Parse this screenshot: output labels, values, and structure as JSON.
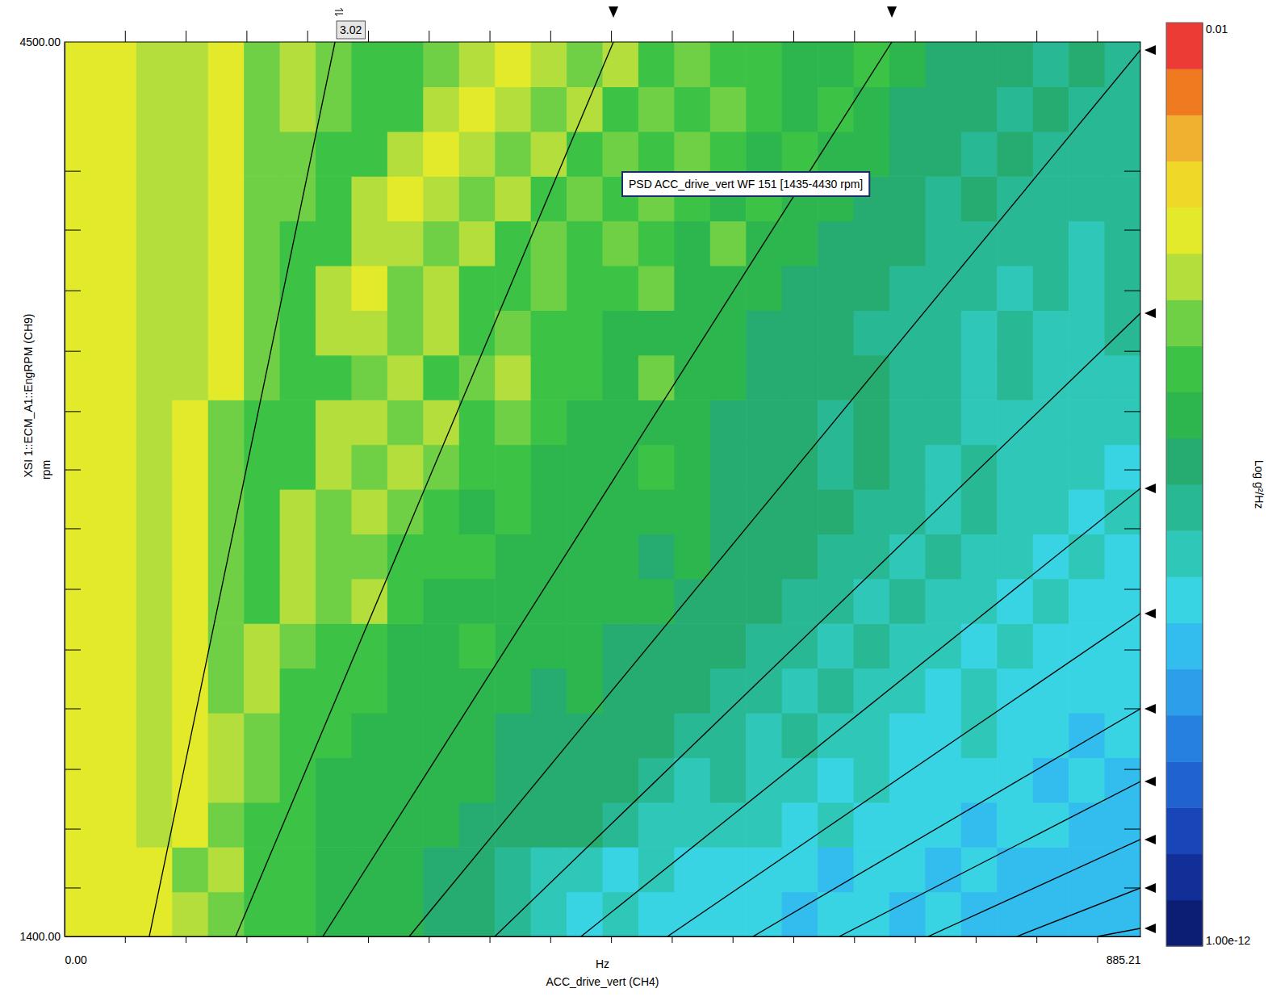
{
  "chart_data": {
    "type": "heatmap",
    "x_label": "ACC_drive_vert (CH4)",
    "x_unit": "Hz",
    "y_label": "XSI 1::ECM_A1::EngRPM (CH9)",
    "y_unit": "rpm",
    "annotation": "PSD ACC_drive_vert WF 151 [1435-4430 rpm]",
    "cursor_order": 3.02,
    "xlim": [
      0,
      885.21
    ],
    "ylim": [
      1400,
      4500
    ],
    "xticks": [
      {
        "value": 0,
        "label": "0.00"
      },
      {
        "value": 885.21,
        "label": "885.21"
      }
    ],
    "yticks": [
      {
        "value": 1400,
        "label": "1400.00"
      },
      {
        "value": 4500,
        "label": "4500.00"
      }
    ],
    "minor_xticks": [
      50,
      100,
      150,
      200,
      250,
      300,
      350,
      400,
      450,
      500,
      550,
      600,
      650,
      700,
      750,
      800,
      850
    ],
    "minor_yticks": [
      1568,
      1772,
      1979,
      2189,
      2393,
      2603,
      2813,
      3017,
      3219,
      3428,
      3638,
      3848,
      4052
    ],
    "x_bins": [
      0,
      29.51,
      59.01,
      88.52,
      118.03,
      147.54,
      177.04,
      206.55,
      236.06,
      265.56,
      295.07,
      324.58,
      354.08,
      383.59,
      413.1,
      442.61,
      472.11,
      501.62,
      531.13,
      560.63,
      590.14,
      619.65,
      649.15,
      678.66,
      708.17,
      737.68,
      767.18,
      796.69,
      826.2,
      855.7,
      885.21
    ],
    "y_bins": [
      1400,
      1555,
      1710,
      1865,
      2020,
      2175,
      2330,
      2485,
      2640,
      2795,
      2950,
      3105,
      3260,
      3415,
      3570,
      3725,
      3880,
      4035,
      4190,
      4345,
      4500
    ],
    "z": [
      [
        5e-05,
        5e-05,
        5e-05,
        1.5e-05,
        4e-06,
        1.5e-06,
        1.5e-06,
        6e-07,
        6e-07,
        6e-07,
        2e-07,
        2e-07,
        6e-08,
        2e-08,
        6e-09,
        2e-08,
        6e-09,
        6e-09,
        6e-09,
        6e-09,
        2e-09,
        6e-09,
        6e-09,
        2e-09,
        6e-09,
        2e-09,
        2e-09,
        2e-09,
        2e-09,
        2e-09
      ],
      [
        5e-05,
        5e-05,
        5e-05,
        4e-06,
        1.5e-05,
        1.5e-06,
        1.5e-06,
        6e-07,
        6e-07,
        6e-07,
        2e-07,
        2e-07,
        6e-08,
        2e-08,
        2e-08,
        6e-09,
        2e-08,
        6e-09,
        6e-09,
        6e-09,
        6e-09,
        2e-09,
        6e-09,
        6e-09,
        2e-09,
        6e-09,
        2e-09,
        2e-09,
        2e-09,
        2e-09
      ],
      [
        5e-05,
        5e-05,
        1.5e-05,
        5e-05,
        4e-06,
        1.5e-06,
        1.5e-06,
        6e-07,
        6e-07,
        6e-07,
        6e-07,
        2e-07,
        2e-07,
        2e-07,
        2e-07,
        6e-08,
        2e-08,
        2e-08,
        2e-08,
        2e-08,
        6e-09,
        2e-08,
        6e-09,
        6e-09,
        6e-09,
        2e-09,
        6e-09,
        6e-09,
        2e-09,
        2e-09
      ],
      [
        5e-05,
        5e-05,
        1.5e-05,
        5e-05,
        1.5e-05,
        4e-06,
        1.5e-06,
        6e-07,
        6e-07,
        6e-07,
        6e-07,
        6e-07,
        2e-07,
        2e-07,
        2e-07,
        2e-07,
        6e-08,
        2e-08,
        6e-08,
        2e-08,
        2e-08,
        6e-09,
        2e-08,
        6e-09,
        6e-09,
        6e-09,
        6e-09,
        2e-09,
        6e-09,
        2e-09
      ],
      [
        5e-05,
        5e-05,
        1.5e-05,
        5e-05,
        1.5e-05,
        4e-06,
        1.5e-06,
        1.5e-06,
        6e-07,
        6e-07,
        6e-07,
        6e-07,
        2e-07,
        2e-07,
        2e-07,
        2e-07,
        2e-07,
        6e-08,
        6e-08,
        2e-08,
        6e-08,
        2e-08,
        2e-08,
        6e-09,
        6e-09,
        2e-08,
        6e-09,
        6e-09,
        2e-09,
        6e-09
      ],
      [
        5e-05,
        5e-05,
        1.5e-05,
        5e-05,
        4e-06,
        1.5e-05,
        1.5e-06,
        1.5e-06,
        1.5e-06,
        6e-07,
        6e-07,
        6e-07,
        6e-07,
        2e-07,
        6e-07,
        2e-07,
        2e-07,
        2e-07,
        6e-08,
        6e-08,
        2e-08,
        6e-08,
        2e-08,
        2e-08,
        6e-09,
        2e-08,
        6e-09,
        6e-09,
        6e-09,
        6e-09
      ],
      [
        5e-05,
        5e-05,
        1.5e-05,
        5e-05,
        4e-06,
        1.5e-05,
        4e-06,
        1.5e-06,
        1.5e-06,
        6e-07,
        6e-07,
        1.5e-06,
        6e-07,
        6e-07,
        6e-07,
        2e-07,
        2e-07,
        2e-07,
        2e-07,
        6e-08,
        6e-08,
        2e-08,
        6e-08,
        2e-08,
        2e-08,
        6e-09,
        2e-08,
        6e-09,
        6e-09,
        6e-09
      ],
      [
        5e-05,
        5e-05,
        1.5e-05,
        5e-05,
        4e-06,
        1.5e-06,
        1.5e-05,
        4e-06,
        1.5e-05,
        1.5e-06,
        6e-07,
        6e-07,
        6e-07,
        6e-07,
        6e-07,
        6e-07,
        6e-07,
        2e-07,
        2e-07,
        2e-07,
        6e-08,
        6e-08,
        2e-08,
        6e-08,
        2e-08,
        2e-08,
        6e-09,
        2e-08,
        6e-09,
        6e-09
      ],
      [
        5e-05,
        5e-05,
        1.5e-05,
        5e-05,
        4e-06,
        1.5e-06,
        1.5e-05,
        4e-06,
        4e-06,
        1.5e-06,
        1.5e-06,
        1.5e-06,
        6e-07,
        6e-07,
        6e-07,
        6e-07,
        2e-07,
        6e-07,
        2e-07,
        2e-07,
        2e-07,
        6e-08,
        6e-08,
        2e-08,
        6e-08,
        2e-08,
        2e-08,
        6e-09,
        2e-08,
        6e-09
      ],
      [
        5e-05,
        5e-05,
        1.5e-05,
        5e-05,
        4e-06,
        1.5e-06,
        1.5e-05,
        4e-06,
        1.5e-05,
        4e-06,
        1.5e-06,
        6e-07,
        1.5e-06,
        6e-07,
        6e-07,
        6e-07,
        6e-07,
        6e-07,
        2e-07,
        2e-07,
        2e-07,
        2e-07,
        6e-08,
        6e-08,
        2e-08,
        6e-08,
        2e-08,
        2e-08,
        6e-09,
        2e-08
      ],
      [
        5e-05,
        5e-05,
        1.5e-05,
        5e-05,
        4e-06,
        1.5e-06,
        1.5e-06,
        1.5e-05,
        4e-06,
        1.5e-05,
        4e-06,
        1.5e-06,
        1.5e-06,
        6e-07,
        6e-07,
        6e-07,
        1.5e-06,
        6e-07,
        2e-07,
        2e-07,
        2e-07,
        6e-08,
        2e-07,
        6e-08,
        2e-08,
        6e-08,
        2e-08,
        2e-08,
        2e-08,
        6e-09
      ],
      [
        5e-05,
        5e-05,
        1.5e-05,
        5e-05,
        4e-06,
        1.5e-06,
        1.5e-06,
        1.5e-05,
        1.5e-05,
        4e-06,
        1.5e-05,
        1.5e-06,
        4e-06,
        1.5e-06,
        6e-07,
        6e-07,
        6e-07,
        6e-07,
        2e-07,
        2e-07,
        2e-07,
        6e-08,
        2e-07,
        6e-08,
        6e-08,
        2e-08,
        2e-08,
        2e-08,
        2e-08,
        2e-08
      ],
      [
        5e-05,
        5e-05,
        1.5e-05,
        1.5e-05,
        5e-05,
        4e-06,
        1.5e-06,
        1.5e-06,
        4e-06,
        1.5e-05,
        1.5e-06,
        4e-06,
        1.5e-05,
        1.5e-06,
        1.5e-06,
        6e-07,
        4e-06,
        6e-07,
        6e-07,
        2e-07,
        2e-07,
        2e-07,
        2e-07,
        6e-08,
        6e-08,
        2e-08,
        6e-08,
        2e-08,
        2e-08,
        2e-08
      ],
      [
        5e-05,
        5e-05,
        1.5e-05,
        1.5e-05,
        5e-05,
        4e-06,
        1.5e-06,
        1.5e-05,
        1.5e-05,
        4e-06,
        1.5e-05,
        1.5e-06,
        4e-06,
        1.5e-06,
        1.5e-06,
        6e-07,
        6e-07,
        6e-07,
        6e-07,
        2e-07,
        2e-07,
        2e-07,
        6e-08,
        6e-08,
        6e-08,
        2e-08,
        6e-08,
        2e-08,
        2e-08,
        6e-08
      ],
      [
        5e-05,
        5e-05,
        1.5e-05,
        1.5e-05,
        5e-05,
        4e-06,
        1.5e-06,
        1.5e-05,
        5e-05,
        4e-06,
        1.5e-05,
        1.5e-06,
        1.5e-06,
        4e-06,
        1.5e-06,
        1.5e-06,
        4e-06,
        6e-07,
        6e-07,
        6e-07,
        2e-07,
        2e-07,
        2e-07,
        6e-08,
        6e-08,
        6e-08,
        2e-08,
        6e-08,
        2e-08,
        6e-08
      ],
      [
        5e-05,
        5e-05,
        1.5e-05,
        1.5e-05,
        5e-05,
        4e-06,
        1.5e-06,
        1.5e-06,
        1.5e-05,
        1.5e-05,
        4e-06,
        1.5e-05,
        1.5e-06,
        4e-06,
        1.5e-06,
        4e-06,
        1.5e-06,
        6e-07,
        4e-06,
        6e-07,
        6e-07,
        2e-07,
        2e-07,
        2e-07,
        6e-08,
        6e-08,
        6e-08,
        6e-08,
        2e-08,
        6e-08
      ],
      [
        5e-05,
        5e-05,
        1.5e-05,
        1.5e-05,
        5e-05,
        4e-06,
        4e-06,
        1.5e-06,
        1.5e-05,
        5e-05,
        1.5e-05,
        4e-06,
        1.5e-05,
        1.5e-06,
        4e-06,
        1.5e-06,
        4e-06,
        1.5e-06,
        6e-07,
        1.5e-06,
        6e-07,
        6e-07,
        2e-07,
        2e-07,
        6e-08,
        2e-07,
        6e-08,
        6e-08,
        6e-08,
        6e-08
      ],
      [
        5e-05,
        5e-05,
        1.5e-05,
        1.5e-05,
        5e-05,
        4e-06,
        4e-06,
        1.5e-06,
        1.5e-06,
        1.5e-05,
        5e-05,
        1.5e-05,
        4e-06,
        1.5e-05,
        1.5e-06,
        4e-06,
        1.5e-06,
        4e-06,
        1.5e-06,
        6e-07,
        1.5e-06,
        6e-07,
        6e-07,
        2e-07,
        2e-07,
        6e-08,
        2e-07,
        6e-08,
        6e-08,
        6e-08
      ],
      [
        5e-05,
        5e-05,
        1.5e-05,
        1.5e-05,
        5e-05,
        4e-06,
        1.5e-05,
        4e-06,
        1.5e-06,
        1.5e-06,
        1.5e-05,
        5e-05,
        1.5e-05,
        4e-06,
        1.5e-05,
        1.5e-06,
        4e-06,
        1.5e-06,
        4e-06,
        1.5e-06,
        6e-07,
        1.5e-06,
        6e-07,
        2e-07,
        2e-07,
        2e-07,
        6e-08,
        2e-07,
        6e-08,
        6e-08
      ],
      [
        5e-05,
        5e-05,
        1.5e-05,
        1.5e-05,
        5e-05,
        4e-06,
        1.5e-05,
        4e-06,
        1.5e-06,
        1.5e-06,
        4e-06,
        1.5e-05,
        5e-05,
        1.5e-05,
        4e-06,
        1.5e-05,
        1.5e-06,
        4e-06,
        1.5e-06,
        1.5e-06,
        6e-07,
        6e-07,
        1.5e-06,
        6e-07,
        2e-07,
        2e-07,
        2e-07,
        6e-08,
        2e-07,
        6e-08
      ]
    ],
    "order_lines": [
      {
        "x": [
          69.7,
          222.5
        ],
        "y": [
          1400,
          4500
        ]
      },
      {
        "x": [
          140.8,
          451.6
        ],
        "y": [
          1400,
          4500
        ]
      },
      {
        "x": [
          212.5,
          680.7
        ],
        "y": [
          1400,
          4500
        ]
      },
      {
        "x": [
          283.6,
          885.21
        ],
        "y": [
          1400,
          4472
        ]
      },
      {
        "x": [
          354.0,
          885.21
        ],
        "y": [
          1400,
          3560
        ]
      },
      {
        "x": [
          425.0,
          885.21
        ],
        "y": [
          1400,
          2953
        ]
      },
      {
        "x": [
          496.1,
          885.21
        ],
        "y": [
          1400,
          2519
        ]
      },
      {
        "x": [
          566.5,
          885.21
        ],
        "y": [
          1400,
          2189
        ]
      },
      {
        "x": [
          637.5,
          885.21
        ],
        "y": [
          1400,
          1937
        ]
      },
      {
        "x": [
          710.6,
          885.21
        ],
        "y": [
          1400,
          1736
        ]
      },
      {
        "x": [
          783.6,
          885.21
        ],
        "y": [
          1400,
          1568
        ]
      },
      {
        "x": [
          850.0,
          885.21
        ],
        "y": [
          1400,
          1428
        ]
      }
    ],
    "colorbar": {
      "label": "Log g²/Hz",
      "log": true,
      "range": [
        1e-12,
        0.01
      ],
      "ticks": [
        {
          "value": 0.01,
          "label": "0.01"
        },
        {
          "value": 1e-12,
          "label": "1.00e-12"
        }
      ],
      "colors": [
        "#0b1e74",
        "#122f98",
        "#1846b8",
        "#1f62d0",
        "#2580e0",
        "#2c9eea",
        "#33bcee",
        "#38d4e4",
        "#2fc8b8",
        "#28b894",
        "#26ac70",
        "#2eb64e",
        "#3cc244",
        "#6fd046",
        "#b4de3c",
        "#e2ea2a",
        "#f0d828",
        "#f0b030",
        "#f07a20",
        "#ec3a34"
      ]
    }
  }
}
